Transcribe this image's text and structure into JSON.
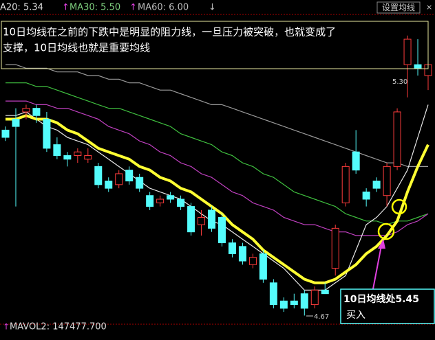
{
  "indicators": [
    "A20: 5.34",
    "MA30: 5.50",
    "MA60: 6.00"
  ],
  "settings_button": "设置均线",
  "note_box": {
    "lines": [
      "10日均线在之前的下跌中是明显的阻力线，一旦压力被突破，也就变成了",
      "支撑，10日均线也就是重要均线"
    ]
  },
  "buy_box": {
    "title": "10日均线处5.45",
    "action": "买入"
  },
  "volume_label": "MAVOL2: 147477.700",
  "chart_data": {
    "type": "candlestick",
    "categories": [
      null,
      null,
      null,
      null,
      null,
      null,
      null,
      null,
      null,
      null,
      null,
      null,
      null,
      null,
      null,
      null,
      null,
      null,
      null,
      null,
      null,
      null,
      null,
      null,
      null,
      null,
      null,
      null,
      null,
      null,
      null,
      null,
      null,
      null,
      null,
      null,
      null,
      null,
      null,
      null,
      null,
      null
    ],
    "open": [
      5.18,
      5.21,
      5.23,
      5.24,
      5.21,
      5.14,
      5.11,
      5.11,
      5.1,
      5.08,
      5.04,
      5.03,
      5.07,
      5.05,
      5.0,
      4.98,
      5.0,
      4.99,
      4.97,
      4.92,
      4.96,
      4.94,
      4.87,
      4.86,
      4.81,
      4.84,
      4.76,
      4.71,
      4.71,
      4.73,
      4.7,
      4.74,
      4.8,
      4.98,
      5.12,
      5.01,
      5.04,
      5.0,
      5.08,
      5.36,
      5.36,
      5.33
    ],
    "close": [
      5.16,
      5.19,
      5.24,
      5.22,
      5.13,
      5.11,
      5.1,
      5.12,
      5.11,
      5.03,
      5.02,
      5.06,
      5.04,
      5.02,
      4.97,
      4.99,
      4.99,
      4.97,
      4.9,
      4.94,
      4.91,
      4.87,
      4.84,
      4.82,
      4.83,
      4.77,
      4.7,
      4.69,
      4.7,
      4.69,
      4.74,
      4.73,
      4.91,
      5.08,
      5.07,
      4.99,
      5.02,
      5.08,
      5.23,
      5.43,
      5.35,
      5.36
    ],
    "high": [
      5.19,
      5.24,
      5.25,
      5.25,
      5.23,
      5.16,
      5.12,
      5.13,
      5.13,
      5.09,
      5.05,
      5.07,
      5.08,
      5.06,
      5.01,
      5.0,
      5.01,
      5.0,
      4.98,
      4.96,
      4.97,
      4.95,
      4.88,
      4.87,
      4.84,
      4.85,
      4.77,
      4.72,
      4.73,
      4.74,
      4.75,
      4.76,
      4.92,
      5.09,
      5.18,
      5.02,
      5.05,
      5.09,
      5.24,
      5.44,
      5.43,
      5.38
    ],
    "low": [
      5.15,
      4.97,
      5.21,
      5.2,
      5.12,
      5.1,
      5.08,
      5.09,
      5.09,
      5.02,
      5.01,
      5.02,
      5.03,
      5.01,
      4.96,
      4.97,
      4.98,
      4.96,
      4.89,
      4.89,
      4.9,
      4.86,
      4.83,
      4.81,
      4.8,
      4.76,
      4.69,
      4.68,
      4.69,
      4.67,
      4.69,
      4.73,
      4.78,
      4.97,
      5.06,
      4.97,
      5.01,
      4.97,
      5.07,
      5.27,
      5.33,
      5.29
    ],
    "up_color": "#ff3c3c",
    "down_color": "#54fcfc",
    "ylim": [
      4.65,
      5.5
    ],
    "series": [
      {
        "color": "#9a9a9a",
        "values": [
          5.36,
          5.36,
          5.35,
          5.35,
          5.35,
          5.34,
          5.34,
          5.34,
          5.33,
          5.33,
          5.32,
          5.32,
          5.31,
          5.31,
          5.3,
          5.29,
          5.29,
          5.28,
          5.27,
          5.26,
          5.25,
          5.25,
          5.24,
          5.23,
          5.22,
          5.21,
          5.2,
          5.19,
          5.18,
          5.17,
          5.16,
          5.15,
          5.14,
          5.13,
          5.12,
          5.11,
          5.1,
          5.09,
          5.09,
          5.08,
          5.08,
          5.08
        ]
      },
      {
        "color": "#3fbf3f",
        "values": [
          5.31,
          5.31,
          5.31,
          5.3,
          5.3,
          5.29,
          5.28,
          5.27,
          5.26,
          5.25,
          5.24,
          5.24,
          5.23,
          5.22,
          5.21,
          5.2,
          5.19,
          5.17,
          5.16,
          5.15,
          5.14,
          5.12,
          5.11,
          5.09,
          5.08,
          5.06,
          5.05,
          5.03,
          5.01,
          5.0,
          4.99,
          4.98,
          4.97,
          4.95,
          4.94,
          4.93,
          4.93,
          4.92,
          4.93,
          4.93,
          4.94,
          4.95
        ]
      },
      {
        "color": "#c040c0",
        "values": [
          5.26,
          5.26,
          5.26,
          5.25,
          5.25,
          5.24,
          5.24,
          5.23,
          5.22,
          5.21,
          5.19,
          5.18,
          5.17,
          5.15,
          5.14,
          5.12,
          5.11,
          5.09,
          5.08,
          5.06,
          5.05,
          5.03,
          5.01,
          5.0,
          4.98,
          4.97,
          4.96,
          4.94,
          4.93,
          4.92,
          4.92,
          4.91,
          4.9,
          4.9,
          4.89,
          4.89,
          4.89,
          4.89,
          4.9,
          4.92,
          4.93,
          4.95
        ]
      },
      {
        "color": "#e8e8e8",
        "values": [
          5.22,
          5.22,
          5.23,
          5.21,
          5.19,
          5.18,
          5.16,
          5.15,
          5.14,
          5.12,
          5.1,
          5.08,
          5.06,
          5.04,
          5.02,
          5.01,
          5.0,
          4.99,
          4.97,
          4.95,
          4.93,
          4.92,
          4.9,
          4.88,
          4.86,
          4.84,
          4.82,
          4.8,
          4.77,
          4.74,
          4.74,
          4.74,
          4.76,
          4.78,
          4.85,
          4.92,
          4.94,
          4.97,
          5.02,
          5.07,
          5.16,
          5.25
        ]
      },
      {
        "color": "#ffff33",
        "values": [
          5.21,
          5.21,
          5.22,
          5.21,
          5.21,
          5.2,
          5.18,
          5.17,
          5.15,
          5.13,
          5.12,
          5.11,
          5.1,
          5.08,
          5.07,
          5.05,
          5.04,
          5.02,
          5.01,
          4.99,
          4.97,
          4.95,
          4.92,
          4.9,
          4.88,
          4.85,
          4.83,
          4.81,
          4.79,
          4.77,
          4.76,
          4.76,
          4.77,
          4.79,
          4.81,
          4.84,
          4.86,
          4.89,
          4.93,
          5.01,
          5.08,
          5.14
        ]
      }
    ],
    "annotations": [
      "5.30",
      "4.67"
    ]
  }
}
